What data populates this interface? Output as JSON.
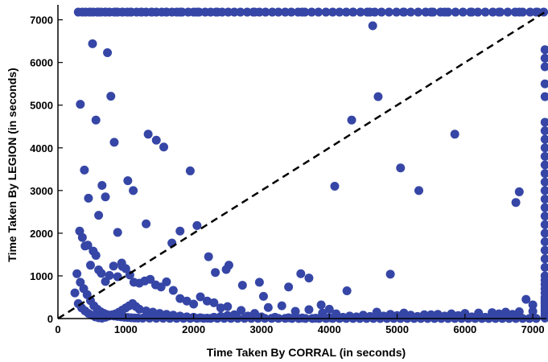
{
  "chart_data": {
    "type": "scatter",
    "title": "",
    "xlabel": "Time Taken By CORRAL (in seconds)",
    "ylabel": "Time Taken By LEGION (in seconds)",
    "xlim": [
      0,
      7200
    ],
    "ylim": [
      0,
      7200
    ],
    "xticks": [
      0,
      1000,
      2000,
      3000,
      4000,
      5000,
      6000,
      7000
    ],
    "yticks": [
      0,
      1000,
      2000,
      3000,
      4000,
      5000,
      6000,
      7000
    ],
    "grid": false,
    "point_color": "#3646a6",
    "reference_line": {
      "style": "dashed",
      "color": "#000000",
      "x": [
        0,
        7200
      ],
      "y": [
        0,
        7200
      ]
    },
    "series": [
      {
        "x": [
          300,
          360,
          410,
          470,
          520,
          580,
          640,
          700,
          760,
          830,
          880,
          950,
          1020,
          1080,
          1160,
          1230,
          1300,
          1380,
          1450,
          1530,
          1600,
          1680,
          1750,
          1830,
          1920,
          2000,
          2080,
          2170,
          2250,
          2330,
          2420,
          2510,
          2600,
          2690,
          2790,
          2880,
          2970,
          3060,
          3160,
          3250,
          3350,
          3440,
          3540,
          3640,
          3740,
          3840,
          3950,
          4050,
          4150,
          4250,
          4350,
          4460,
          4560,
          4670,
          4770,
          4880,
          4990,
          5090,
          5200,
          5310,
          5420,
          5530,
          5640,
          5750,
          5860,
          5970,
          6080,
          6190,
          6300,
          6410,
          6520,
          6630,
          6740,
          6850,
          6960,
          7070,
          7160,
          470,
          600,
          700,
          860,
          950,
          1070,
          1230,
          1380,
          1600,
          1800,
          2050,
          2350,
          2900,
          3600,
          4350,
          4600,
          5100,
          5500,
          5700,
          6100,
          6500,
          6800,
          7050,
          330,
          390,
          450,
          510,
          560,
          600,
          650,
          700,
          730,
          780,
          830,
          880,
          950,
          1030,
          1110,
          1300,
          1330,
          1450,
          1560,
          1680,
          1800,
          1950,
          2050,
          2220,
          2320,
          2480,
          2520,
          2720,
          2970,
          3030,
          3400,
          3580,
          3700,
          3880,
          4000,
          4080,
          4260,
          4330,
          4640,
          4720,
          4900,
          5050,
          5320,
          5850,
          6750,
          6800,
          320,
          360,
          400,
          440,
          480,
          520,
          560,
          600,
          640,
          700,
          760,
          820,
          880,
          940,
          1000,
          1060,
          1120,
          1200,
          1280,
          1360,
          1440,
          1520,
          1600,
          1700,
          1800,
          1900,
          2000,
          2100,
          2200,
          2300,
          2400,
          2500,
          2700,
          2900,
          3100,
          3300,
          3500,
          3700,
          3900,
          4100,
          4300,
          4500,
          4700,
          4900,
          5100,
          5300,
          5500,
          5700,
          5900,
          6100,
          6300,
          6500,
          6700,
          6900,
          7000,
          250,
          300,
          350,
          400,
          450,
          500,
          550,
          600,
          650,
          700,
          750,
          800,
          850,
          900,
          950,
          1000,
          1050,
          1100,
          1150,
          1200,
          1300,
          1400,
          1500,
          1600,
          1700,
          1800,
          1900,
          2000,
          2100,
          2200,
          2300,
          2400,
          2500,
          2600,
          2800,
          3000,
          3200,
          3400,
          3600,
          3800,
          4000,
          4200,
          4400,
          4600,
          4800,
          5000,
          5200,
          5400,
          5600,
          5800,
          6000,
          6200,
          6400,
          6600,
          6800,
          7000,
          280,
          330,
          380,
          430,
          480,
          530,
          580,
          630,
          680,
          730,
          780,
          830,
          880,
          930,
          980,
          1030,
          1080,
          1130,
          1180,
          1250,
          1350,
          1450,
          1550,
          1650,
          1750,
          1850,
          1950,
          2050,
          2150,
          2250,
          2350,
          2450,
          2550,
          2650,
          2750,
          2850,
          2950,
          3050,
          3150,
          3250,
          3350,
          3450,
          3550,
          3650,
          3750,
          3850,
          3950,
          4050,
          4150,
          4250,
          4350,
          4450,
          4550,
          4650,
          4750,
          4850,
          4950,
          5050,
          5150,
          5250,
          5350,
          5450,
          5550,
          5650,
          5750,
          5850,
          5950,
          6050,
          6150,
          6250,
          6350,
          6450,
          6550,
          6650,
          6750,
          6850,
          6950,
          7050,
          7180,
          7180,
          7180,
          7180,
          7180,
          7180,
          7180,
          7180,
          7180,
          7180,
          7180,
          7180,
          7180,
          7180,
          7180,
          7180,
          7180,
          7180,
          7180,
          7180,
          7180,
          7180,
          7180,
          7180,
          7180,
          7180,
          7180,
          7180,
          7180,
          7180,
          7180,
          7180,
          7180,
          7180,
          7180,
          7180,
          7180,
          7180,
          7180,
          7180
        ],
        "y": [
          7180,
          7180,
          7180,
          7180,
          7180,
          7180,
          7180,
          7180,
          7180,
          7180,
          7180,
          7180,
          7180,
          7180,
          7180,
          7180,
          7180,
          7180,
          7180,
          7180,
          7180,
          7180,
          7180,
          7180,
          7180,
          7180,
          7180,
          7180,
          7180,
          7180,
          7180,
          7180,
          7180,
          7180,
          7180,
          7180,
          7180,
          7180,
          7180,
          7180,
          7180,
          7180,
          7180,
          7180,
          7180,
          7180,
          7180,
          7180,
          7180,
          7180,
          7180,
          7180,
          7180,
          7180,
          7180,
          7180,
          7180,
          7180,
          7180,
          7180,
          7180,
          7180,
          7180,
          7180,
          7180,
          7180,
          7180,
          7180,
          7180,
          7180,
          7180,
          7180,
          7180,
          7180,
          7180,
          7180,
          7180,
          7180,
          7180,
          7180,
          7180,
          7180,
          7180,
          7180,
          7180,
          7180,
          7180,
          7180,
          7180,
          7180,
          7180,
          7180,
          7180,
          7180,
          7180,
          7180,
          7180,
          7180,
          7180,
          7180,
          5020,
          3480,
          2820,
          6440,
          4650,
          2420,
          3120,
          2850,
          6230,
          5210,
          4130,
          2020,
          1220,
          3230,
          3000,
          2220,
          4320,
          4180,
          4020,
          1770,
          2050,
          3460,
          2180,
          1450,
          1080,
          1150,
          1250,
          780,
          850,
          520,
          740,
          1050,
          950,
          320,
          220,
          3100,
          650,
          4650,
          6860,
          5200,
          1040,
          3530,
          3000,
          4320,
          2720,
          2970,
          2050,
          1900,
          1700,
          1720,
          1250,
          1580,
          1480,
          1140,
          1060,
          870,
          1010,
          1230,
          980,
          1300,
          1170,
          1020,
          850,
          830,
          880,
          920,
          790,
          740,
          860,
          660,
          470,
          410,
          340,
          510,
          410,
          370,
          250,
          280,
          190,
          120,
          260,
          300,
          170,
          210,
          130,
          110,
          60,
          80,
          150,
          100,
          130,
          50,
          90,
          60,
          70,
          40,
          30,
          110,
          100,
          450,
          320,
          600,
          350,
          250,
          180,
          120,
          80,
          40,
          20,
          10,
          30,
          60,
          90,
          110,
          150,
          200,
          250,
          300,
          350,
          280,
          220,
          180,
          150,
          120,
          100,
          80,
          60,
          40,
          30,
          20,
          10,
          30,
          50,
          70,
          90,
          60,
          40,
          30,
          20,
          15,
          10,
          20,
          30,
          40,
          50,
          60,
          70,
          80,
          90,
          100,
          110,
          120,
          130,
          140,
          150,
          160,
          170,
          1050,
          850,
          700,
          560,
          420,
          300,
          220,
          160,
          120,
          90,
          70,
          60,
          50,
          40,
          30,
          25,
          20,
          15,
          12,
          10,
          10,
          8,
          8,
          6,
          6,
          5,
          5,
          5,
          5,
          5,
          4,
          4,
          4,
          4,
          4,
          4,
          4,
          4,
          4,
          4,
          4,
          3,
          3,
          3,
          3,
          3,
          3,
          3,
          3,
          3,
          3,
          3,
          3,
          3,
          3,
          3,
          3,
          3,
          3,
          3,
          3,
          3,
          3,
          3,
          3,
          3,
          3,
          3,
          3,
          3,
          3,
          3,
          3,
          3,
          3,
          3,
          3,
          3,
          6300,
          6100,
          5900,
          5500,
          5200,
          4600,
          4400,
          4200,
          4000,
          3800,
          3600,
          3400,
          3200,
          3000,
          2800,
          2600,
          2400,
          2200,
          2000,
          1800,
          1600,
          1400,
          1200,
          1000,
          900,
          800,
          700,
          600,
          500,
          450,
          400,
          350,
          300,
          250,
          200,
          150,
          100,
          70,
          40,
          10
        ]
      }
    ]
  }
}
